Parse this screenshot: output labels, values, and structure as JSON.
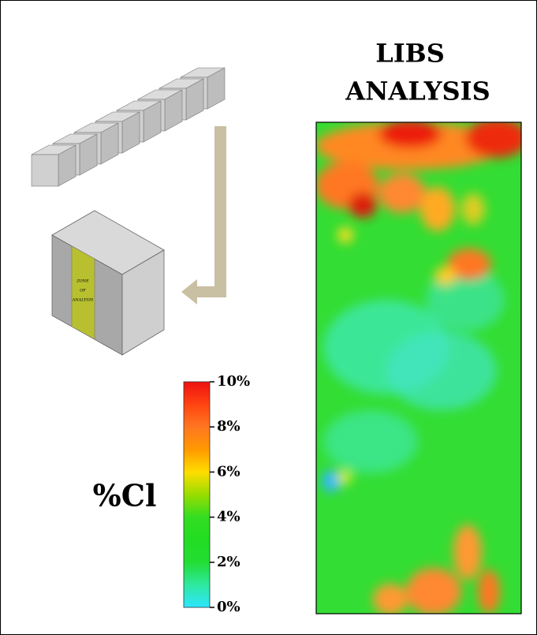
{
  "title": [
    "LIBS",
    "ANALYSIS"
  ],
  "block_label": [
    "ZONE",
    "OF",
    "ANALYSIS"
  ],
  "colorbar": {
    "label": "%Cl",
    "range": [
      0,
      10
    ],
    "ticks": [
      {
        "value": 10,
        "label": "10%"
      },
      {
        "value": 8,
        "label": "8%"
      },
      {
        "value": 6,
        "label": "6%"
      },
      {
        "value": 4,
        "label": "4%"
      },
      {
        "value": 2,
        "label": "2%"
      },
      {
        "value": 0,
        "label": "0%"
      }
    ],
    "colors": [
      "#2ee6ff",
      "#2ee8a0",
      "#22dd33",
      "#22dd22",
      "#33dd22",
      "#99dd00",
      "#ffdd00",
      "#ff9900",
      "#ff7722",
      "#ff4411",
      "#ee1111"
    ]
  }
}
